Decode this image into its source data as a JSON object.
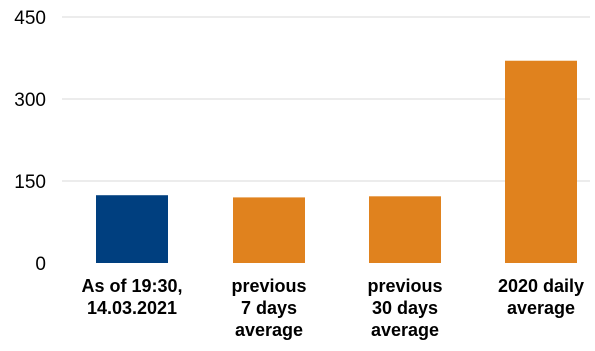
{
  "chart_data": {
    "type": "bar",
    "title": "",
    "xlabel": "",
    "ylabel": "",
    "ylim": [
      0,
      450
    ],
    "yticks": [
      0,
      150,
      300,
      450
    ],
    "grid": true,
    "legend": "none",
    "categories": [
      [
        "As of 19:30,",
        "14.03.2021"
      ],
      [
        "previous",
        "7 days",
        "average"
      ],
      [
        "previous",
        "30 days",
        "average"
      ],
      [
        "2020 daily",
        "average"
      ]
    ],
    "values": [
      124,
      120,
      122,
      370
    ],
    "colors": [
      "#003f7f",
      "#e0821e",
      "#e0821e",
      "#e0821e"
    ]
  }
}
